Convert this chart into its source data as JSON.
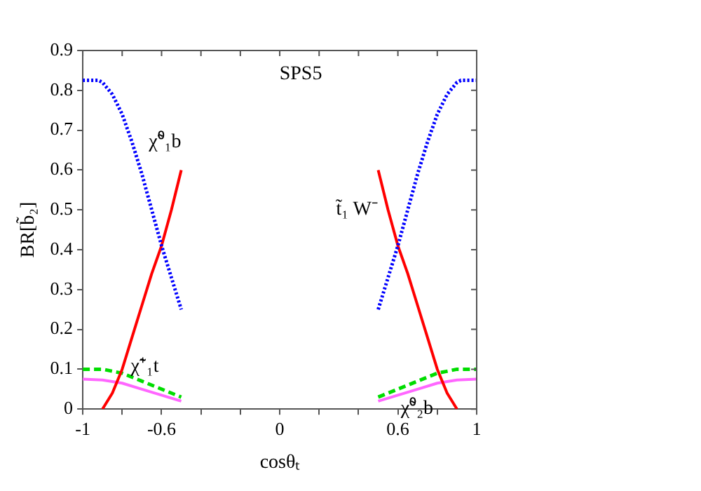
{
  "chart_data": {
    "type": "line",
    "xlabel": "cosθₜ",
    "ylabel": "BR[b̃₂]",
    "xlim": [
      -1,
      1
    ],
    "xticks": [
      -1,
      {
        "value": -0.8,
        "label": null
      },
      -0.6,
      {
        "value": -0.4,
        "label": null
      },
      {
        "value": -0.2,
        "label": null
      },
      0,
      {
        "value": 0.2,
        "label": null
      },
      {
        "value": 0.4,
        "label": null
      },
      0.6,
      {
        "value": 0.8,
        "label": null
      },
      1
    ],
    "ylim": [
      0,
      0.9
    ],
    "yticks": [
      0,
      0.1,
      0.2,
      0.3,
      0.4,
      0.5,
      0.6,
      0.7,
      0.8,
      0.9
    ],
    "grid": false,
    "legend": false,
    "marker": "none",
    "series": [
      {
        "name": "χ̃⁰₁b",
        "color": "#0000ff",
        "line_style": "dotted",
        "x": [
          -1,
          -0.92,
          -0.9,
          -0.85,
          -0.8,
          -0.75,
          -0.7,
          -0.65,
          -0.6,
          -0.55,
          -0.5,
          0,
          0.5,
          0.55,
          0.6,
          0.65,
          0.7,
          0.75,
          0.8,
          0.85,
          0.9,
          0.92,
          1
        ],
        "values": [
          0.825,
          0.825,
          0.82,
          0.79,
          0.74,
          0.67,
          0.59,
          0.5,
          0.41,
          0.33,
          0.25,
          null,
          0.25,
          0.33,
          0.41,
          0.5,
          0.59,
          0.67,
          0.74,
          0.79,
          0.82,
          0.825,
          0.825
        ]
      },
      {
        "name": "t̃₁ W⁻",
        "color": "#ff0000",
        "line_style": "solid",
        "x": [
          -0.9,
          -0.85,
          -0.8,
          -0.75,
          -0.7,
          -0.65,
          -0.6,
          -0.55,
          -0.5,
          0,
          0.5,
          0.55,
          0.6,
          0.65,
          0.7,
          0.75,
          0.8,
          0.85,
          0.9
        ],
        "values": [
          0,
          0.04,
          0.1,
          0.18,
          0.26,
          0.34,
          0.41,
          0.5,
          0.6,
          null,
          0.6,
          0.5,
          0.41,
          0.34,
          0.26,
          0.18,
          0.1,
          0.04,
          0
        ]
      },
      {
        "name": "χ̃⁺₁t",
        "color": "#00dd00",
        "line_style": "dashed",
        "x": [
          -1,
          -0.9,
          -0.8,
          -0.7,
          -0.6,
          -0.5,
          0,
          0.5,
          0.6,
          0.7,
          0.8,
          0.9,
          1
        ],
        "values": [
          0.1,
          0.1,
          0.09,
          0.07,
          0.05,
          0.03,
          null,
          0.03,
          0.05,
          0.07,
          0.09,
          0.1,
          0.1
        ]
      },
      {
        "name": "χ̃⁰₂b",
        "color": "#ff66ff",
        "line_style": "solid",
        "x": [
          -1,
          -0.9,
          -0.8,
          -0.7,
          -0.6,
          -0.5,
          0,
          0.5,
          0.6,
          0.7,
          0.8,
          0.9,
          1
        ],
        "values": [
          0.075,
          0.073,
          0.065,
          0.05,
          0.035,
          0.02,
          null,
          0.02,
          0.035,
          0.05,
          0.065,
          0.073,
          0.075
        ]
      }
    ],
    "annotations": [
      "SPS5"
    ]
  }
}
